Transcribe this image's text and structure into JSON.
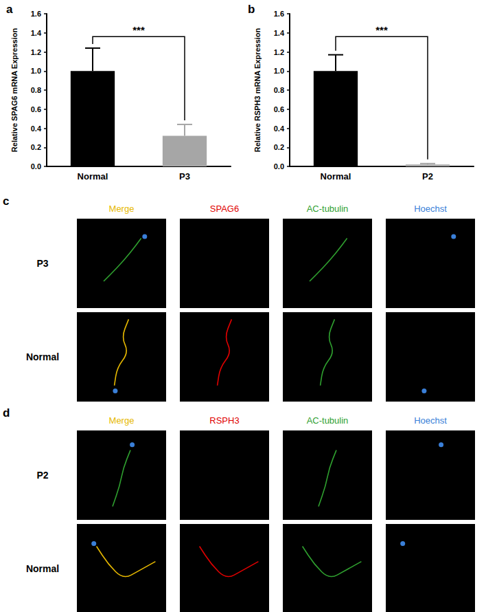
{
  "chart_data": [
    {
      "type": "bar",
      "title": "a",
      "y_label": "Relative SPAG6 mRNA Expression",
      "categories": [
        "Normal",
        "P3"
      ],
      "values": [
        1.0,
        0.32
      ],
      "errors": [
        0.24,
        0.12
      ],
      "colors": [
        "#000000",
        "#a6a6a6"
      ],
      "ylim": [
        0,
        1.6
      ],
      "yticks": [
        {
          "value": 0,
          "label": "0.0"
        },
        0.2,
        0.4,
        0.6,
        0.8,
        {
          "value": 1,
          "label": "1.0"
        },
        1.2,
        1.4,
        1.6
      ],
      "grid": false,
      "significance": {
        "label": "***",
        "between": [
          "Normal",
          "P3"
        ],
        "y": 1.36
      }
    },
    {
      "type": "bar",
      "title": "b",
      "y_label": "Relative RSPH3 mRNA Expression",
      "categories": [
        "Normal",
        "P2"
      ],
      "values": [
        1.0,
        0.02
      ],
      "errors": [
        0.17,
        0.01
      ],
      "colors": [
        "#000000",
        "#a6a6a6"
      ],
      "ylim": [
        0,
        1.6
      ],
      "yticks": [
        {
          "value": 0,
          "label": "0.0"
        },
        0.2,
        0.4,
        0.6,
        0.8,
        {
          "value": 1,
          "label": "1.0"
        },
        1.2,
        1.4,
        1.6
      ],
      "grid": false,
      "significance": {
        "label": "***",
        "between": [
          "Normal",
          "P2"
        ],
        "y": 1.36
      }
    }
  ],
  "image_panels": [
    {
      "label": "c",
      "columns": [
        {
          "label": "Merge",
          "color": "#e6b800"
        },
        {
          "label": "SPAG6",
          "color": "#e00000"
        },
        {
          "label": "AC-tubulin",
          "color": "#2fa02f"
        },
        {
          "label": "Hoechst",
          "color": "#3a7fd8"
        }
      ],
      "rows": [
        {
          "label": "P3",
          "signals": [
            "AC-tubulin",
            "Hoechst"
          ]
        },
        {
          "label": "Normal",
          "signals": [
            "SPAG6",
            "AC-tubulin",
            "Hoechst"
          ]
        }
      ]
    },
    {
      "label": "d",
      "columns": [
        {
          "label": "Merge",
          "color": "#e6b800"
        },
        {
          "label": "RSPH3",
          "color": "#e00000"
        },
        {
          "label": "AC-tubulin",
          "color": "#2fa02f"
        },
        {
          "label": "Hoechst",
          "color": "#3a7fd8"
        }
      ],
      "rows": [
        {
          "label": "P2",
          "signals": [
            "AC-tubulin",
            "Hoechst"
          ]
        },
        {
          "label": "Normal",
          "signals": [
            "RSPH3",
            "AC-tubulin",
            "Hoechst"
          ]
        }
      ]
    }
  ]
}
